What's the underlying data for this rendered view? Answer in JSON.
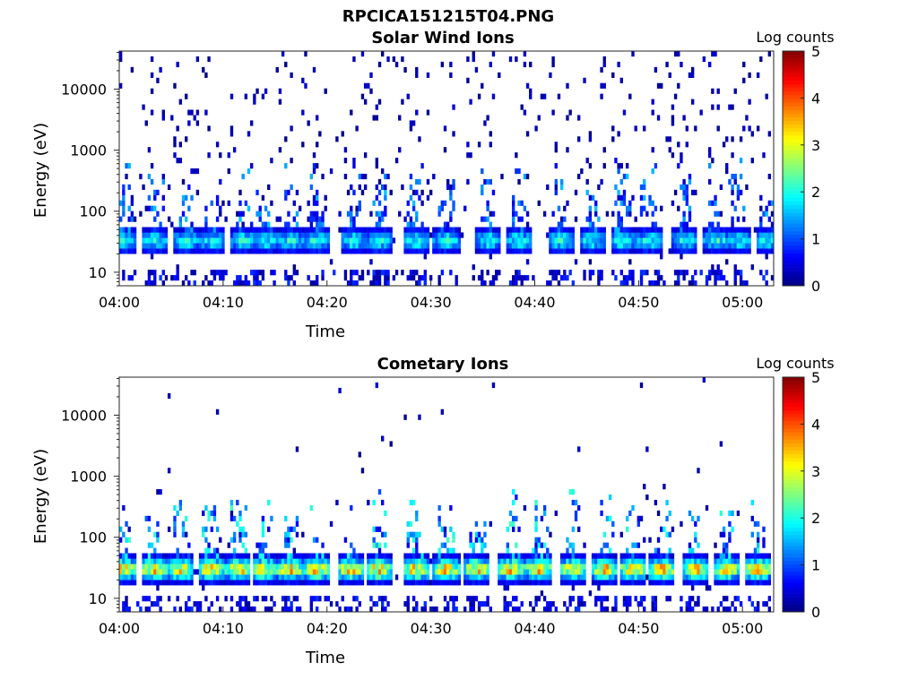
{
  "figure_title": "RPCICA151215T04.PNG",
  "chart_data": [
    {
      "type": "heatmap",
      "title": "Solar Wind Ions",
      "xlabel": "Time",
      "ylabel": "Energy (eV)",
      "x_ticks": [
        "04:00",
        "04:10",
        "04:20",
        "04:30",
        "04:40",
        "04:50",
        "05:00"
      ],
      "x_tick_minutes": [
        0,
        10,
        20,
        30,
        40,
        50,
        60
      ],
      "xlim_minutes": [
        0,
        63
      ],
      "y_scale": "log",
      "y_ticks": [
        "10",
        "100",
        "1000",
        "10000"
      ],
      "y_tick_values": [
        10,
        100,
        1000,
        10000
      ],
      "ylim": [
        6,
        42000
      ],
      "colorbar_label": "Log counts",
      "colorbar_ticks": [
        "0",
        "1",
        "2",
        "3",
        "4",
        "5"
      ],
      "clim": [
        0,
        5
      ],
      "colormap": "jet",
      "band_peak_log_counts": 2.3,
      "band_center_eV": 33,
      "bursts_minutes": [
        0.5,
        3.5,
        6.5,
        9.0,
        12.0,
        14.0,
        16.5,
        19.0,
        22.5,
        25.0,
        28.5,
        31.5,
        35.5,
        38.5,
        42.5,
        45.5,
        48.5,
        51.0,
        54.5,
        57.5,
        59.5,
        62.5
      ]
    },
    {
      "type": "heatmap",
      "title": "Cometary Ions",
      "xlabel": "Time",
      "ylabel": "Energy (eV)",
      "x_ticks": [
        "04:00",
        "04:10",
        "04:20",
        "04:30",
        "04:40",
        "04:50",
        "05:00"
      ],
      "x_tick_minutes": [
        0,
        10,
        20,
        30,
        40,
        50,
        60
      ],
      "xlim_minutes": [
        0,
        63
      ],
      "y_scale": "log",
      "y_ticks": [
        "10",
        "100",
        "1000",
        "10000"
      ],
      "y_tick_values": [
        10,
        100,
        1000,
        10000
      ],
      "ylim": [
        6,
        42000
      ],
      "colorbar_label": "Log counts",
      "colorbar_ticks": [
        "0",
        "1",
        "2",
        "3",
        "4",
        "5"
      ],
      "clim": [
        0,
        5
      ],
      "colormap": "jet",
      "band_peak_log_counts": 3.8,
      "band_center_eV": 30,
      "bursts_minutes": [
        0.3,
        3.3,
        6.0,
        8.8,
        11.5,
        14.0,
        16.5,
        19.0,
        22.3,
        25.0,
        28.5,
        31.5,
        34.5,
        37.8,
        40.5,
        43.8,
        46.8,
        49.5,
        52.3,
        55.5,
        58.5,
        61.5
      ]
    }
  ]
}
